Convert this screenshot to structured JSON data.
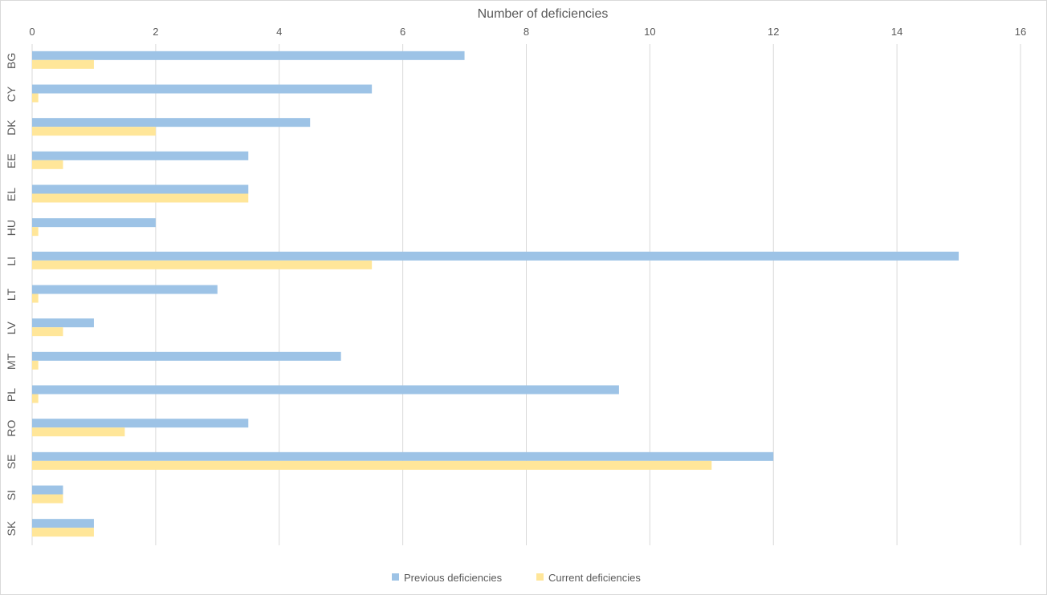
{
  "chart_data": {
    "type": "bar",
    "orientation": "horizontal",
    "title": "",
    "xlabel": "Number of deficiencies",
    "ylabel": "",
    "xlim": [
      0,
      16
    ],
    "x_ticks": [
      0,
      2,
      4,
      6,
      8,
      10,
      12,
      14,
      16
    ],
    "x_axis_position": "top",
    "grid": true,
    "legend_position": "bottom",
    "categories": [
      "BG",
      "CY",
      "DK",
      "EE",
      "EL",
      "HU",
      "LI",
      "LT",
      "LV",
      "MT",
      "PL",
      "RO",
      "SE",
      "SI",
      "SK"
    ],
    "series": [
      {
        "name": "Previous deficiencies",
        "color": "#9dc3e6",
        "values": [
          7,
          5.5,
          4.5,
          3.5,
          3.5,
          2,
          15,
          3,
          1,
          5,
          9.5,
          3.5,
          12,
          0.5,
          1
        ]
      },
      {
        "name": "Current deficiencies",
        "color": "#ffe699",
        "values": [
          1,
          0.1,
          2,
          0.5,
          3.5,
          0.1,
          5.5,
          0.1,
          0.5,
          0.1,
          0.1,
          1.5,
          11,
          0.5,
          1
        ]
      }
    ]
  }
}
